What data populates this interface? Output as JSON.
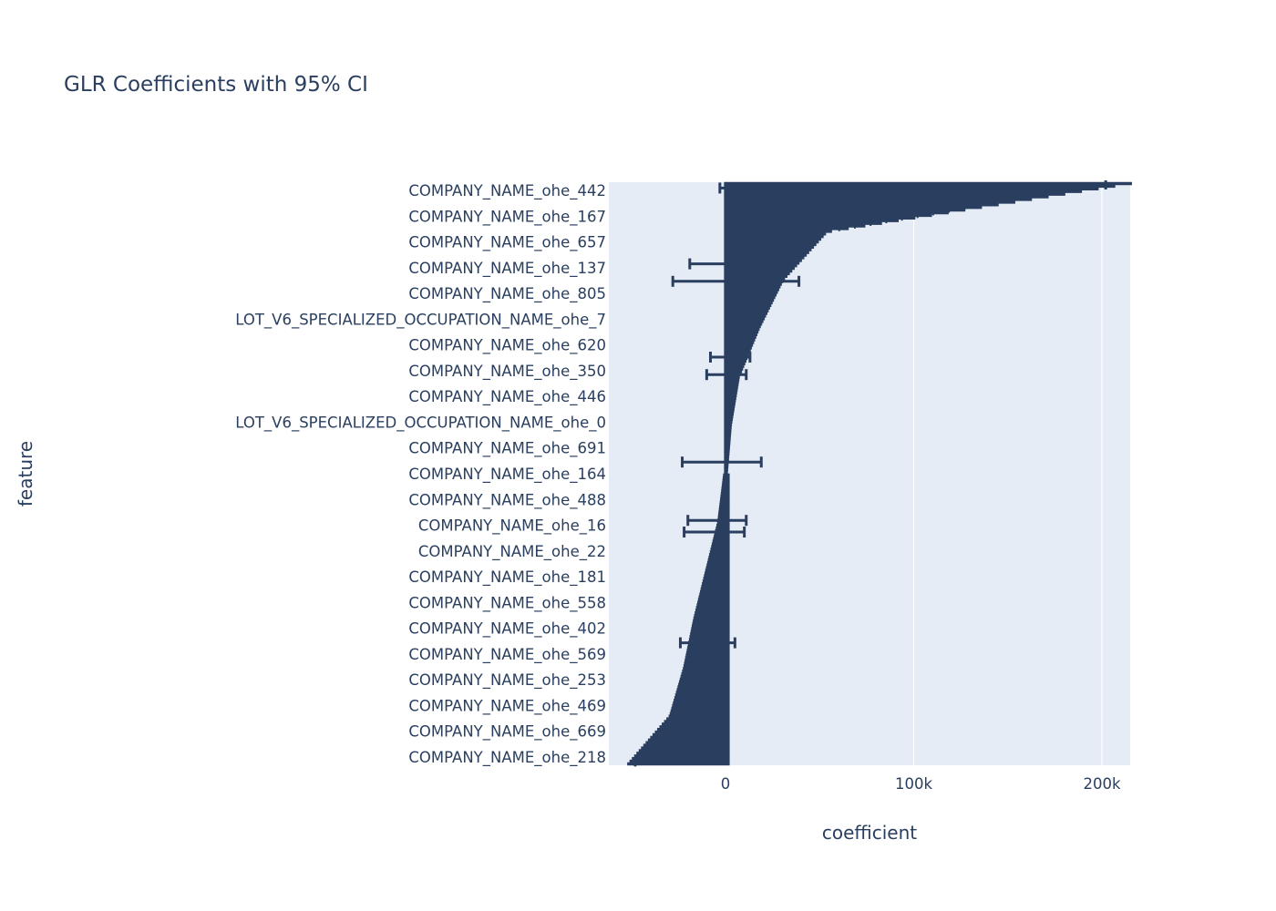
{
  "chart_data": {
    "type": "scatter",
    "title": "GLR Coefficients with 95% CI",
    "xlabel": "coefficient",
    "ylabel": "feature",
    "xlim": [
      -62000,
      215000
    ],
    "x_ticks": [
      0,
      100000,
      200000
    ],
    "x_tick_labels": [
      "0",
      "100k",
      "200k"
    ],
    "grid": true,
    "legend": "none",
    "colors": {
      "plot_bg": "#e5ecf6",
      "marks": "#2a3f5f",
      "grid": "#ffffff"
    },
    "categories": [
      "COMPANY_NAME_ohe_442",
      "COMPANY_NAME_ohe_167",
      "COMPANY_NAME_ohe_657",
      "COMPANY_NAME_ohe_137",
      "COMPANY_NAME_ohe_805",
      "LOT_V6_SPECIALIZED_OCCUPATION_NAME_ohe_7",
      "COMPANY_NAME_ohe_620",
      "COMPANY_NAME_ohe_350",
      "COMPANY_NAME_ohe_446",
      "LOT_V6_SPECIALIZED_OCCUPATION_NAME_ohe_0",
      "COMPANY_NAME_ohe_691",
      "COMPANY_NAME_ohe_164",
      "COMPANY_NAME_ohe_488",
      "COMPANY_NAME_ohe_16",
      "COMPANY_NAME_ohe_22",
      "COMPANY_NAME_ohe_181",
      "COMPANY_NAME_ohe_558",
      "COMPANY_NAME_ohe_402",
      "COMPANY_NAME_ohe_569",
      "COMPANY_NAME_ohe_253",
      "COMPANY_NAME_ohe_469",
      "COMPANY_NAME_ohe_669",
      "COMPANY_NAME_ohe_218"
    ],
    "series": [
      {
        "ci_points": [
          [
            202000,
            0,
            0
          ],
          [
            50000,
            0,
            0
          ],
          [
            28000,
            0,
            0
          ],
          [
            16000,
            0,
            0
          ],
          [
            6000,
            0,
            0
          ],
          [
            2000,
            0,
            0
          ],
          [
            0,
            0,
            0
          ],
          [
            -3000,
            0,
            0
          ],
          [
            -9000,
            0,
            0
          ],
          [
            -15000,
            0,
            0
          ],
          [
            -20000,
            0,
            0
          ],
          [
            -27000,
            0,
            0
          ],
          [
            -48000,
            0,
            0
          ]
        ],
        "wide_ci": [
          [
            0,
            -3000,
            0
          ],
          [
            5000,
            -19000,
            32000
          ],
          [
            4000,
            -28000,
            39000
          ],
          [
            2000,
            -8000,
            13000
          ],
          [
            0,
            -10000,
            11000
          ],
          [
            -2000,
            -23000,
            19000
          ],
          [
            -4000,
            -20000,
            11000
          ],
          [
            -5000,
            -22000,
            10000
          ],
          [
            -9000,
            -24000,
            5000
          ]
        ]
      }
    ]
  }
}
